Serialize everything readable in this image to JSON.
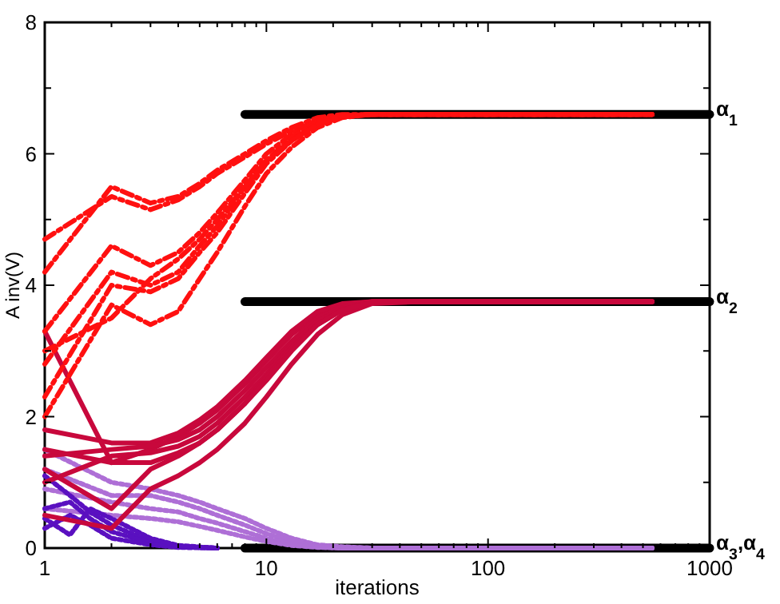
{
  "chart_data": {
    "type": "line",
    "xlabel": "iterations",
    "ylabel": "A inv(V)",
    "log": "x",
    "legend": "right",
    "xlim": [
      1,
      1000
    ],
    "ylim": [
      0,
      8
    ],
    "xticks": [
      1,
      {
        "value": 2,
        "label": null
      },
      {
        "value": 3,
        "label": null
      },
      {
        "value": 4,
        "label": null
      },
      {
        "value": 5,
        "label": null
      },
      {
        "value": 6,
        "label": null
      },
      {
        "value": 7,
        "label": null
      },
      {
        "value": 8,
        "label": null
      },
      {
        "value": 9,
        "label": null
      },
      10,
      {
        "value": 20,
        "label": null
      },
      {
        "value": 30,
        "label": null
      },
      {
        "value": 40,
        "label": null
      },
      {
        "value": 50,
        "label": null
      },
      {
        "value": 60,
        "label": null
      },
      {
        "value": 70,
        "label": null
      },
      {
        "value": 80,
        "label": null
      },
      {
        "value": 90,
        "label": null
      },
      100,
      {
        "value": 200,
        "label": null
      },
      {
        "value": 300,
        "label": null
      },
      {
        "value": 400,
        "label": null
      },
      {
        "value": 500,
        "label": null
      },
      {
        "value": 600,
        "label": null
      },
      {
        "value": 700,
        "label": null
      },
      {
        "value": 800,
        "label": null
      },
      {
        "value": 900,
        "label": null
      },
      1000
    ],
    "yticks": [
      0,
      {
        "value": 1,
        "label": null
      },
      2,
      {
        "value": 3,
        "label": null
      },
      4,
      {
        "value": 5,
        "label": null
      },
      6,
      {
        "value": 7,
        "label": null
      },
      8
    ],
    "x": [
      1,
      2,
      3,
      4,
      5,
      6,
      8,
      10,
      13,
      17,
      22,
      30,
      50,
      100,
      550
    ],
    "series": [
      {
        "name": "α$_{1}$",
        "color": "#000000",
        "x": [
          8,
          1000
        ],
        "values": [
          6.6,
          6.6
        ],
        "line_style": "solid"
      },
      {
        "name": "α$_{2}$",
        "color": "#000000",
        "x": [
          8,
          1000
        ],
        "values": [
          3.75,
          3.75
        ],
        "line_style": "solid"
      },
      {
        "name": "α$_{3}$,α$_{4}$",
        "color": "#000000",
        "x": [
          8,
          1000
        ],
        "values": [
          0,
          0
        ],
        "line_style": "solid"
      },
      {
        "color": "#ae6fd6",
        "line_style": "dotted",
        "values": [
          1.5,
          1.0,
          0.9,
          0.8,
          0.7,
          0.6,
          0.45,
          0.3,
          0.15,
          0.05,
          0.02,
          0,
          0,
          0,
          0
        ]
      },
      {
        "color": "#ae6fd6",
        "line_style": "dotted",
        "values": [
          1.2,
          0.8,
          0.8,
          0.7,
          0.6,
          0.5,
          0.35,
          0.22,
          0.1,
          0.03,
          0.01,
          0,
          0,
          0,
          0
        ]
      },
      {
        "color": "#ae6fd6",
        "line_style": "dotted",
        "values": [
          0.9,
          0.7,
          0.6,
          0.55,
          0.45,
          0.38,
          0.25,
          0.15,
          0.06,
          0.02,
          0,
          0,
          0,
          0,
          0
        ]
      },
      {
        "color": "#ae6fd6",
        "line_style": "dotted",
        "values": [
          0.6,
          0.5,
          0.45,
          0.4,
          0.33,
          0.27,
          0.17,
          0.1,
          0.04,
          0.01,
          0,
          0,
          0,
          0,
          0
        ]
      },
      {
        "color": "#5a10c0",
        "line_style": "dotted",
        "x": [
          1,
          1.3,
          1.6,
          2,
          3,
          4,
          6
        ],
        "values": [
          1.1,
          0.8,
          0.55,
          0.35,
          0.1,
          0.03,
          0
        ]
      },
      {
        "color": "#5a10c0",
        "line_style": "dotted",
        "x": [
          1,
          1.3,
          1.6,
          2,
          3,
          4,
          6
        ],
        "values": [
          0.6,
          0.7,
          0.45,
          0.25,
          0.08,
          0.02,
          0
        ]
      },
      {
        "color": "#5a10c0",
        "line_style": "dotted",
        "x": [
          1,
          1.3,
          1.6,
          2,
          3,
          4,
          6
        ],
        "values": [
          0.3,
          0.5,
          0.35,
          0.15,
          0.05,
          0.01,
          0
        ]
      },
      {
        "color": "#5a10c0",
        "line_style": "dotted",
        "x": [
          1,
          1.3,
          1.6,
          2,
          3,
          4,
          6
        ],
        "values": [
          0.45,
          0.2,
          0.6,
          0.45,
          0.15,
          0.04,
          0
        ]
      },
      {
        "color": "#c8083c",
        "line_style": "solid",
        "values": [
          3.3,
          1.3,
          1.5,
          1.7,
          1.9,
          2.1,
          2.5,
          2.85,
          3.25,
          3.55,
          3.7,
          3.75,
          3.75,
          3.75,
          3.75
        ]
      },
      {
        "color": "#c8083c",
        "line_style": "solid",
        "values": [
          1.8,
          1.6,
          1.6,
          1.75,
          1.95,
          2.15,
          2.55,
          2.9,
          3.3,
          3.6,
          3.72,
          3.75,
          3.75,
          3.75,
          3.75
        ]
      },
      {
        "color": "#c8083c",
        "line_style": "solid",
        "values": [
          1.4,
          1.5,
          1.55,
          1.65,
          1.8,
          2.0,
          2.4,
          2.75,
          3.15,
          3.5,
          3.68,
          3.75,
          3.75,
          3.75,
          3.75
        ]
      },
      {
        "color": "#c8083c",
        "line_style": "solid",
        "values": [
          1.0,
          1.4,
          1.45,
          1.55,
          1.7,
          1.9,
          2.3,
          2.65,
          3.1,
          3.45,
          3.65,
          3.75,
          3.75,
          3.75,
          3.75
        ]
      },
      {
        "color": "#c8083c",
        "line_style": "solid",
        "values": [
          1.2,
          0.6,
          1.2,
          1.4,
          1.6,
          1.8,
          2.2,
          2.6,
          3.05,
          3.4,
          3.63,
          3.74,
          3.75,
          3.75,
          3.75
        ]
      },
      {
        "color": "#c8083c",
        "line_style": "solid",
        "values": [
          0.5,
          0.3,
          0.9,
          1.1,
          1.3,
          1.5,
          1.9,
          2.3,
          2.8,
          3.25,
          3.55,
          3.72,
          3.75,
          3.75,
          3.75
        ]
      },
      {
        "color": "#c8083c",
        "line_style": "solid",
        "values": [
          1.5,
          1.3,
          1.3,
          1.45,
          1.6,
          1.8,
          2.2,
          2.55,
          3.0,
          3.4,
          3.62,
          3.74,
          3.75,
          3.75,
          3.75
        ]
      },
      {
        "color": "#ff1010",
        "line_style": "dashed",
        "values": [
          4.2,
          5.5,
          5.25,
          5.35,
          5.55,
          5.75,
          6.0,
          6.2,
          6.4,
          6.55,
          6.6,
          6.6,
          6.6,
          6.6,
          6.6
        ]
      },
      {
        "color": "#ff1010",
        "line_style": "dashed",
        "values": [
          4.7,
          5.35,
          5.15,
          5.3,
          5.5,
          5.7,
          5.95,
          6.15,
          6.35,
          6.5,
          6.58,
          6.6,
          6.6,
          6.6,
          6.6
        ]
      },
      {
        "color": "#ff1010",
        "line_style": "dashed",
        "values": [
          3.3,
          4.6,
          4.3,
          4.5,
          4.8,
          5.1,
          5.6,
          6.0,
          6.3,
          6.5,
          6.58,
          6.6,
          6.6,
          6.6,
          6.6
        ]
      },
      {
        "color": "#ff1010",
        "line_style": "dashed",
        "values": [
          2.8,
          4.2,
          4.0,
          4.2,
          4.6,
          4.9,
          5.5,
          5.9,
          6.25,
          6.48,
          6.57,
          6.6,
          6.6,
          6.6,
          6.6
        ]
      },
      {
        "color": "#ff1010",
        "line_style": "dashed",
        "values": [
          2.3,
          4.0,
          3.9,
          4.1,
          4.5,
          4.8,
          5.4,
          5.85,
          6.2,
          6.45,
          6.56,
          6.6,
          6.6,
          6.6,
          6.6
        ]
      },
      {
        "color": "#ff1010",
        "line_style": "dashed",
        "values": [
          2.0,
          3.7,
          3.4,
          3.6,
          4.1,
          4.5,
          5.2,
          5.7,
          6.1,
          6.4,
          6.55,
          6.6,
          6.6,
          6.6,
          6.6
        ]
      },
      {
        "color": "#ff1010",
        "line_style": "dashed",
        "values": [
          3.0,
          3.5,
          4.1,
          4.4,
          4.7,
          5.0,
          5.5,
          5.9,
          6.2,
          6.45,
          6.57,
          6.6,
          6.6,
          6.6,
          6.6
        ]
      }
    ]
  }
}
